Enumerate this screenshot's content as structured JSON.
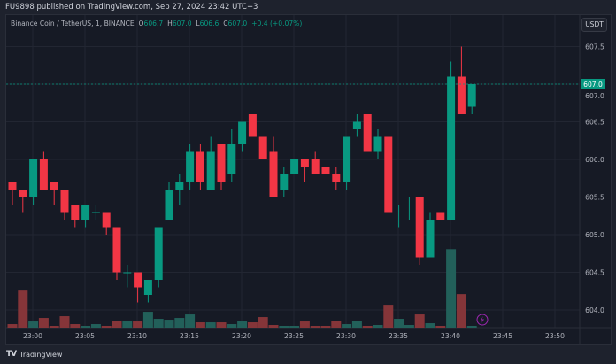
{
  "header": {
    "published": "FU9898 published on TradingView.com, Sep 27, 2024 23:42 UTC+3"
  },
  "legend": {
    "symbol": "Binance Coin / TetherUS, 1, BINANCE",
    "o_label": "O",
    "o": "606.7",
    "h_label": "H",
    "h": "607.0",
    "l_label": "L",
    "l": "606.6",
    "c_label": "C",
    "c": "607.0",
    "change": "+0.4 (+0.07%)"
  },
  "currency_button": "USDT",
  "last_price_label": "607.0",
  "footer": {
    "brand": "TradingView",
    "logo": "TV"
  },
  "colors": {
    "up": "#089981",
    "down": "#f23645",
    "up_volume": "#22605a",
    "down_volume": "#853539",
    "background": "#161a25",
    "accent_icon": "#9c27b0"
  },
  "icons": {
    "event": "lightning-icon"
  },
  "chart_data": {
    "type": "candlestick",
    "interval": "1 minute",
    "ylim": [
      603.8,
      607.7
    ],
    "price_ticks": [
      "607.5",
      "607.0",
      "606.5",
      "606.0",
      "605.5",
      "605.0",
      "604.5",
      "604.0"
    ],
    "time_ticks": [
      "23:00",
      "23:05",
      "23:10",
      "23:15",
      "23:20",
      "23:25",
      "23:30",
      "23:35",
      "23:40",
      "23:45",
      "23:50"
    ],
    "first_time": "22:58",
    "candles": [
      [
        605.7,
        605.7,
        605.4,
        605.6
      ],
      [
        605.6,
        605.6,
        605.3,
        605.5
      ],
      [
        605.5,
        606.0,
        605.4,
        606.0
      ],
      [
        606.0,
        606.1,
        605.6,
        605.6
      ],
      [
        605.7,
        605.7,
        605.4,
        605.6
      ],
      [
        605.6,
        605.6,
        605.2,
        605.3
      ],
      [
        605.4,
        605.4,
        605.1,
        605.2
      ],
      [
        605.2,
        605.4,
        605.1,
        605.4
      ],
      [
        605.3,
        605.4,
        605.2,
        605.3
      ],
      [
        605.3,
        605.3,
        605.0,
        605.1
      ],
      [
        605.1,
        605.1,
        604.4,
        604.5
      ],
      [
        604.5,
        604.6,
        604.3,
        604.5
      ],
      [
        604.5,
        604.5,
        604.1,
        604.3
      ],
      [
        604.2,
        604.4,
        604.1,
        604.4
      ],
      [
        604.4,
        605.1,
        604.3,
        605.1
      ],
      [
        605.2,
        605.7,
        605.2,
        605.6
      ],
      [
        605.6,
        605.8,
        605.4,
        605.7
      ],
      [
        605.7,
        606.2,
        605.6,
        606.1
      ],
      [
        606.1,
        606.2,
        605.6,
        605.7
      ],
      [
        605.6,
        606.3,
        605.6,
        606.1
      ],
      [
        606.2,
        606.2,
        605.6,
        605.7
      ],
      [
        605.8,
        606.4,
        605.7,
        606.2
      ],
      [
        606.2,
        606.5,
        606.1,
        606.5
      ],
      [
        606.6,
        606.6,
        606.3,
        606.3
      ],
      [
        606.3,
        606.3,
        606.0,
        606.0
      ],
      [
        606.1,
        606.3,
        605.5,
        605.5
      ],
      [
        605.6,
        605.9,
        605.5,
        605.8
      ],
      [
        605.8,
        606.0,
        605.8,
        606.0
      ],
      [
        606.0,
        606.0,
        605.7,
        605.9
      ],
      [
        606.0,
        606.1,
        605.8,
        605.8
      ],
      [
        605.9,
        605.9,
        605.8,
        605.8
      ],
      [
        605.8,
        605.9,
        605.6,
        605.7
      ],
      [
        605.7,
        606.3,
        605.6,
        606.3
      ],
      [
        606.4,
        606.6,
        606.3,
        606.5
      ],
      [
        606.6,
        606.6,
        606.1,
        606.1
      ],
      [
        606.1,
        606.4,
        606.0,
        606.3
      ],
      [
        606.3,
        606.3,
        605.3,
        605.3
      ],
      [
        605.4,
        605.4,
        605.1,
        605.4
      ],
      [
        605.4,
        605.5,
        605.2,
        605.4
      ],
      [
        605.5,
        605.5,
        604.6,
        604.7
      ],
      [
        604.7,
        605.3,
        604.7,
        605.2
      ],
      [
        605.3,
        605.3,
        605.2,
        605.2
      ],
      [
        605.2,
        607.3,
        605.2,
        607.1
      ],
      [
        607.1,
        607.5,
        606.6,
        606.6
      ],
      [
        606.7,
        607.0,
        606.6,
        607.0
      ]
    ],
    "volumes": [
      4,
      42,
      7,
      11,
      2,
      13,
      4,
      2,
      4,
      2,
      8,
      8,
      7,
      18,
      10,
      9,
      11,
      15,
      6,
      6,
      6,
      4,
      8,
      6,
      12,
      3,
      2,
      2,
      7,
      2,
      2,
      8,
      4,
      8,
      2,
      3,
      26,
      10,
      3,
      15,
      5,
      2,
      89,
      38,
      2
    ]
  }
}
